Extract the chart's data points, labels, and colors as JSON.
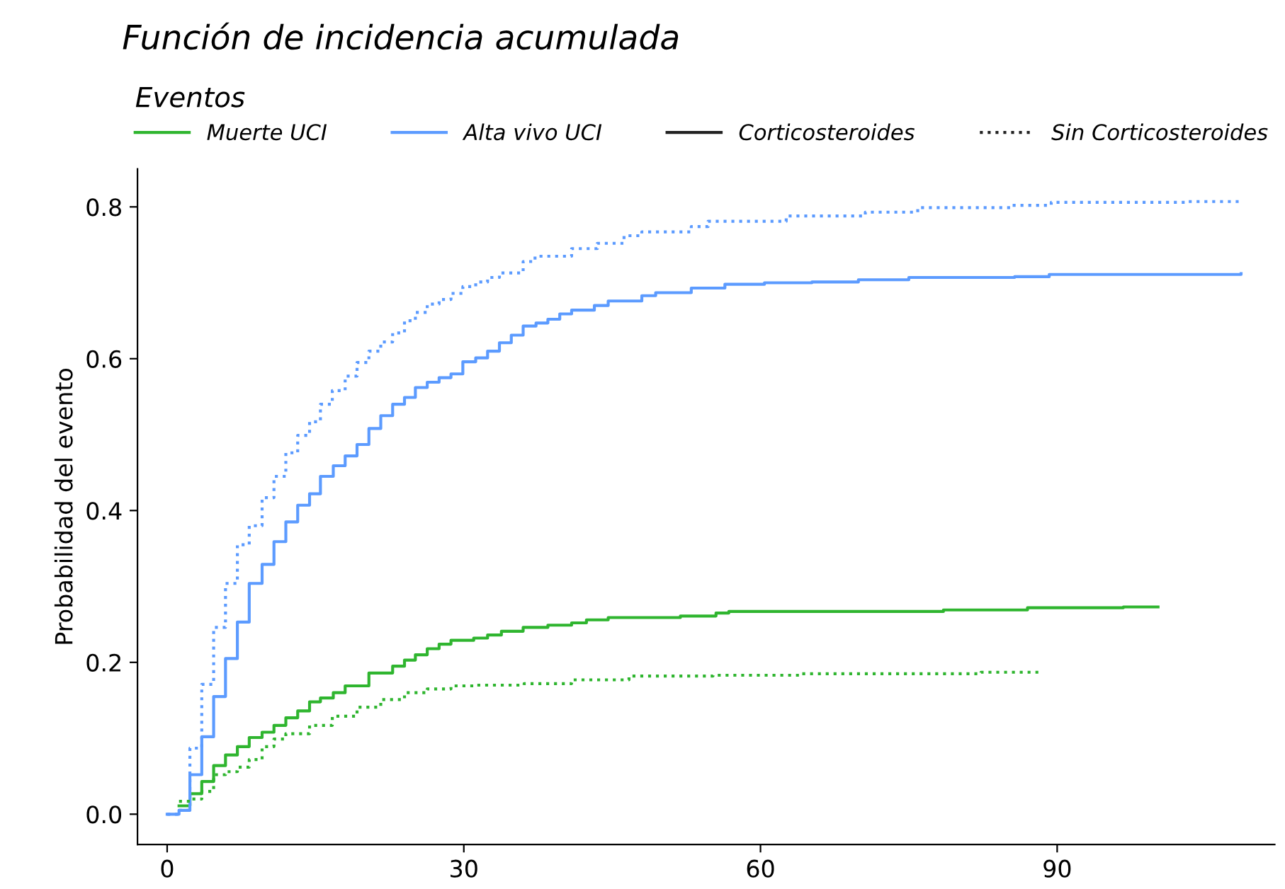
{
  "chart_data": {
    "type": "step",
    "title": "Función de incidencia acumulada",
    "ylabel": "Probabilidad del evento",
    "legend_title": "Eventos",
    "legend": "top",
    "annotations": [
      "Corticosteroides",
      "Sin Corticosteroides"
    ],
    "xlim": [
      -3,
      112
    ],
    "xticks": [
      0,
      30,
      60,
      90
    ],
    "ylim": [
      -0.04,
      0.85
    ],
    "yticks": [
      {
        "value": 0,
        "label": "0.0"
      },
      {
        "value": 0.2,
        "label": "0.2"
      },
      {
        "value": 0.4,
        "label": "0.4"
      },
      {
        "value": 0.6,
        "label": "0.6"
      },
      {
        "value": 0.8,
        "label": "0.8"
      }
    ],
    "grid": false,
    "series": [
      {
        "name": "Muerte UCI",
        "color": "#2fb52f",
        "line_style": "solid",
        "x": [
          1.2,
          2.3,
          3.5,
          4.7,
          5.9,
          7.1,
          8.3,
          9.6,
          10.8,
          12,
          13.2,
          14.4,
          15.5,
          16.8,
          18,
          20.4,
          22.8,
          24,
          25.1,
          26.3,
          27.5,
          28.7,
          31,
          32.4,
          33.8,
          36,
          38.5,
          40.9,
          42.4,
          44.6,
          51.9,
          55.5,
          56.8,
          78.5,
          87,
          96.7,
          100.2
        ],
        "values": [
          0.011,
          0.027,
          0.043,
          0.064,
          0.078,
          0.089,
          0.101,
          0.108,
          0.117,
          0.127,
          0.136,
          0.148,
          0.153,
          0.16,
          0.169,
          0.186,
          0.195,
          0.203,
          0.21,
          0.218,
          0.224,
          0.229,
          0.232,
          0.236,
          0.241,
          0.246,
          0.249,
          0.252,
          0.256,
          0.259,
          0.261,
          0.265,
          0.267,
          0.269,
          0.272,
          0.273,
          0.273
        ]
      },
      {
        "name": "Alta vivo UCI",
        "color": "#5c9bff",
        "line_style": "solid",
        "x": [
          0,
          1.2,
          2.3,
          3.5,
          4.7,
          5.9,
          7.1,
          8.3,
          9.6,
          10.8,
          12,
          13.2,
          14.4,
          15.5,
          16.8,
          18,
          19.2,
          20.4,
          21.6,
          22.8,
          24,
          25.1,
          26.3,
          27.5,
          28.7,
          29.9,
          31.2,
          32.4,
          33.6,
          34.8,
          36,
          37.3,
          38.5,
          39.7,
          40.9,
          43.2,
          44.6,
          48,
          49.4,
          53,
          56.4,
          60.4,
          65.2,
          69.9,
          75,
          85.7,
          89.2,
          108.6
        ],
        "values": [
          0,
          0.005,
          0.052,
          0.102,
          0.155,
          0.205,
          0.253,
          0.304,
          0.329,
          0.359,
          0.385,
          0.407,
          0.422,
          0.445,
          0.459,
          0.472,
          0.487,
          0.508,
          0.525,
          0.54,
          0.549,
          0.562,
          0.569,
          0.575,
          0.58,
          0.596,
          0.601,
          0.61,
          0.621,
          0.631,
          0.643,
          0.647,
          0.652,
          0.659,
          0.664,
          0.67,
          0.676,
          0.683,
          0.687,
          0.693,
          0.698,
          0.7,
          0.701,
          0.704,
          0.707,
          0.708,
          0.711,
          0.712
        ]
      },
      {
        "color": "#2fb52f",
        "line_style": "dotted",
        "x": [
          1.2,
          2.3,
          3.5,
          4.7,
          5.9,
          7.1,
          8.3,
          9.6,
          10.8,
          12,
          14.4,
          16.7,
          19.2,
          21.6,
          24,
          26.3,
          28.7,
          31.2,
          36.1,
          40.9,
          46.7,
          55.2,
          64,
          82.3,
          88.2
        ],
        "values": [
          0.017,
          0.02,
          0.03,
          0.052,
          0.056,
          0.062,
          0.072,
          0.089,
          0.099,
          0.106,
          0.117,
          0.129,
          0.141,
          0.151,
          0.16,
          0.165,
          0.169,
          0.17,
          0.172,
          0.177,
          0.182,
          0.183,
          0.185,
          0.187,
          0.187
        ]
      },
      {
        "color": "#5c9bff",
        "line_style": "dotted",
        "x": [
          0,
          1.2,
          2.3,
          3.5,
          4.7,
          5.9,
          7.1,
          8.3,
          9.6,
          10.8,
          12,
          13.2,
          14.4,
          15.5,
          16.7,
          18,
          19.2,
          20.4,
          21.6,
          22.8,
          24,
          25.1,
          26.3,
          27.5,
          28.7,
          29.9,
          31.2,
          32.4,
          33.6,
          36,
          37.2,
          40.9,
          43.5,
          46.2,
          48,
          53,
          54.7,
          62.6,
          70.6,
          75.9,
          85.4,
          89.4,
          102.9,
          108.4
        ],
        "values": [
          0,
          0.005,
          0.087,
          0.171,
          0.246,
          0.304,
          0.355,
          0.38,
          0.417,
          0.445,
          0.476,
          0.499,
          0.517,
          0.54,
          0.558,
          0.577,
          0.595,
          0.61,
          0.622,
          0.634,
          0.65,
          0.661,
          0.672,
          0.678,
          0.686,
          0.695,
          0.701,
          0.707,
          0.713,
          0.728,
          0.735,
          0.745,
          0.752,
          0.762,
          0.767,
          0.774,
          0.781,
          0.788,
          0.793,
          0.799,
          0.802,
          0.806,
          0.807,
          0.807
        ]
      }
    ]
  }
}
